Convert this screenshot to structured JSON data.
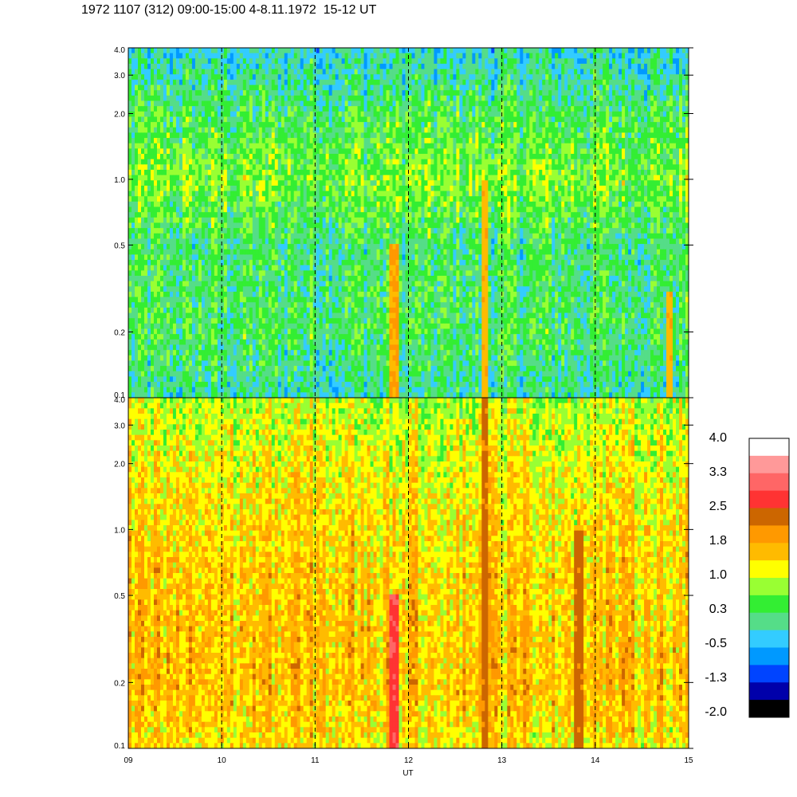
{
  "title": "1972 1107 (312) 09:00-15:00 4-8.11.1972  15-12 UT",
  "chart_data": {
    "type": "heatmap",
    "title": "1972 1107 (312) 09:00-15:00 4-8.11.1972  15-12 UT",
    "xlabel": "UT",
    "x_ticks": [
      "09",
      "10",
      "11",
      "12",
      "13",
      "14",
      "15"
    ],
    "x_values": [
      9,
      10,
      11,
      12,
      13,
      14,
      15
    ],
    "xlim": [
      9,
      15
    ],
    "dashed_verticals": [
      10,
      11,
      12,
      13,
      14
    ],
    "y_scale": "log",
    "panels": [
      {
        "name": "upper",
        "ylim": [
          0.1,
          4.0
        ],
        "y_ticks": [
          {
            "label": "0.1",
            "value": 0.1
          },
          {
            "label": "0.2",
            "value": 0.2
          },
          {
            "label": "0.5",
            "value": 0.5
          },
          {
            "label": "1.0",
            "value": 1.0
          },
          {
            "label": "2.0",
            "value": 2.0
          },
          {
            "label": "3.0",
            "value": 3.0
          },
          {
            "label": "4.0",
            "value": 4.0
          }
        ],
        "approx_levels_by_y": [
          {
            "y": 0.1,
            "level": 0.0
          },
          {
            "y": 0.2,
            "level": 0.3
          },
          {
            "y": 0.5,
            "level": 0.2
          },
          {
            "y": 1.0,
            "level": 0.7
          },
          {
            "y": 2.0,
            "level": 0.3
          },
          {
            "y": 4.0,
            "level": -0.2
          }
        ],
        "features": [
          {
            "x": 11.85,
            "y_range": [
              0.1,
              0.5
            ],
            "level": 1.8
          },
          {
            "x": 12.82,
            "y_range": [
              0.1,
              1.0
            ],
            "level": 1.6
          },
          {
            "x": 14.8,
            "y_range": [
              0.1,
              0.3
            ],
            "level": 1.6
          }
        ]
      },
      {
        "name": "lower",
        "ylim": [
          0.1,
          4.0
        ],
        "y_ticks": [
          {
            "label": "0.1",
            "value": 0.1
          },
          {
            "label": "0.2",
            "value": 0.2
          },
          {
            "label": "0.5",
            "value": 0.5
          },
          {
            "label": "1.0",
            "value": 1.0
          },
          {
            "label": "2.0",
            "value": 2.0
          },
          {
            "label": "3.0",
            "value": 3.0
          },
          {
            "label": "4.0",
            "value": 4.0
          }
        ],
        "approx_levels_by_y": [
          {
            "y": 0.1,
            "level": 1.3
          },
          {
            "y": 0.2,
            "level": 1.6
          },
          {
            "y": 0.5,
            "level": 1.5
          },
          {
            "y": 1.0,
            "level": 1.4
          },
          {
            "y": 2.0,
            "level": 1.2
          },
          {
            "y": 4.0,
            "level": 0.9
          }
        ],
        "features": [
          {
            "x": 11.85,
            "y_range": [
              0.1,
              0.5
            ],
            "level": 2.8
          },
          {
            "x": 12.82,
            "y_range": [
              0.1,
              4.0
            ],
            "level": 2.3
          },
          {
            "x": 13.82,
            "y_range": [
              0.1,
              1.0
            ],
            "level": 2.3
          }
        ]
      }
    ],
    "colorbar": {
      "labels": [
        "4.0",
        "3.3",
        "2.5",
        "1.8",
        "1.0",
        "0.3",
        "-0.5",
        "-1.3",
        "-2.0"
      ],
      "min": -2.0,
      "max": 4.0,
      "colors": [
        "#ffffff",
        "#ff9999",
        "#ff6666",
        "#ff3333",
        "#cc6600",
        "#ff9900",
        "#ffbb00",
        "#ffff00",
        "#99ff33",
        "#33ee33",
        "#55dd88",
        "#33ccff",
        "#0099ff",
        "#0044ff",
        "#0000aa",
        "#000000"
      ]
    }
  }
}
